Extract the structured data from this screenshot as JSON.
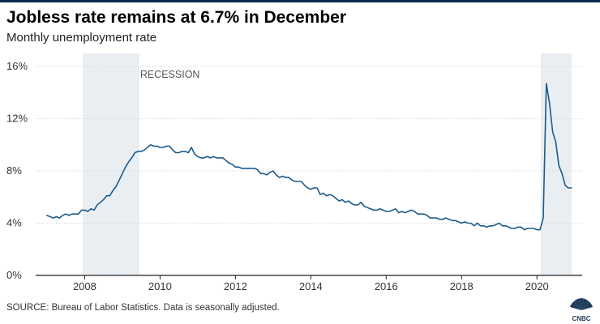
{
  "header": {
    "title": "Jobless rate remains at 6.7% in December",
    "subtitle": "Monthly unemployment rate"
  },
  "footer": {
    "source": "SOURCE: Bureau of Labor Statistics. Data is seasonally adjusted.",
    "logo_text": "CNBC"
  },
  "colors": {
    "line": "#1b5b8c",
    "recession_band": "#e9eef3",
    "grid": "#d9d9d9",
    "axis": "#222222",
    "text": "#333333"
  },
  "chart_data": {
    "type": "line",
    "title": "Jobless rate remains at 6.7% in December",
    "subtitle": "Monthly unemployment rate",
    "xlabel": "",
    "ylabel": "",
    "xlim": [
      2006.7,
      2021.2
    ],
    "ylim": [
      0,
      17
    ],
    "y_ticks": [
      0,
      4,
      8,
      12,
      16
    ],
    "y_tick_labels": [
      "0%",
      "4%",
      "8%",
      "12%",
      "16%"
    ],
    "x_ticks": [
      2008,
      2010,
      2012,
      2014,
      2016,
      2018,
      2020
    ],
    "x_tick_labels": [
      "2008",
      "2010",
      "2012",
      "2014",
      "2016",
      "2018",
      "2020"
    ],
    "grid": true,
    "recessions": [
      {
        "start": 2007.95,
        "end": 2009.45,
        "label": "RECESSION"
      },
      {
        "start": 2020.1,
        "end": 2020.92,
        "label": ""
      }
    ],
    "series": [
      {
        "name": "",
        "x": [
          2007.0,
          2007.083,
          2007.167,
          2007.25,
          2007.333,
          2007.417,
          2007.5,
          2007.583,
          2007.667,
          2007.75,
          2007.833,
          2007.917,
          2008.0,
          2008.083,
          2008.167,
          2008.25,
          2008.333,
          2008.417,
          2008.5,
          2008.583,
          2008.667,
          2008.75,
          2008.833,
          2008.917,
          2009.0,
          2009.083,
          2009.167,
          2009.25,
          2009.333,
          2009.417,
          2009.5,
          2009.583,
          2009.667,
          2009.75,
          2009.833,
          2009.917,
          2010.0,
          2010.083,
          2010.167,
          2010.25,
          2010.333,
          2010.417,
          2010.5,
          2010.583,
          2010.667,
          2010.75,
          2010.833,
          2010.917,
          2011.0,
          2011.083,
          2011.167,
          2011.25,
          2011.333,
          2011.417,
          2011.5,
          2011.583,
          2011.667,
          2011.75,
          2011.833,
          2011.917,
          2012.0,
          2012.083,
          2012.167,
          2012.25,
          2012.333,
          2012.417,
          2012.5,
          2012.583,
          2012.667,
          2012.75,
          2012.833,
          2012.917,
          2013.0,
          2013.083,
          2013.167,
          2013.25,
          2013.333,
          2013.417,
          2013.5,
          2013.583,
          2013.667,
          2013.75,
          2013.833,
          2013.917,
          2014.0,
          2014.083,
          2014.167,
          2014.25,
          2014.333,
          2014.417,
          2014.5,
          2014.583,
          2014.667,
          2014.75,
          2014.833,
          2014.917,
          2015.0,
          2015.083,
          2015.167,
          2015.25,
          2015.333,
          2015.417,
          2015.5,
          2015.583,
          2015.667,
          2015.75,
          2015.833,
          2015.917,
          2016.0,
          2016.083,
          2016.167,
          2016.25,
          2016.333,
          2016.417,
          2016.5,
          2016.583,
          2016.667,
          2016.75,
          2016.833,
          2016.917,
          2017.0,
          2017.083,
          2017.167,
          2017.25,
          2017.333,
          2017.417,
          2017.5,
          2017.583,
          2017.667,
          2017.75,
          2017.833,
          2017.917,
          2018.0,
          2018.083,
          2018.167,
          2018.25,
          2018.333,
          2018.417,
          2018.5,
          2018.583,
          2018.667,
          2018.75,
          2018.833,
          2018.917,
          2019.0,
          2019.083,
          2019.167,
          2019.25,
          2019.333,
          2019.417,
          2019.5,
          2019.583,
          2019.667,
          2019.75,
          2019.833,
          2019.917,
          2020.0,
          2020.083,
          2020.167,
          2020.25,
          2020.333,
          2020.417,
          2020.5,
          2020.583,
          2020.667,
          2020.75,
          2020.833,
          2020.917
        ],
        "y": [
          4.6,
          4.5,
          4.4,
          4.5,
          4.4,
          4.6,
          4.7,
          4.6,
          4.7,
          4.7,
          4.7,
          5.0,
          5.0,
          4.9,
          5.1,
          5.0,
          5.4,
          5.6,
          5.8,
          6.1,
          6.1,
          6.5,
          6.8,
          7.3,
          7.8,
          8.3,
          8.7,
          9.0,
          9.4,
          9.5,
          9.5,
          9.6,
          9.8,
          10.0,
          9.9,
          9.9,
          9.8,
          9.8,
          9.9,
          9.9,
          9.6,
          9.4,
          9.4,
          9.5,
          9.5,
          9.4,
          9.8,
          9.3,
          9.1,
          9.0,
          9.0,
          9.1,
          9.0,
          9.1,
          9.0,
          9.0,
          9.0,
          8.8,
          8.6,
          8.5,
          8.3,
          8.3,
          8.2,
          8.2,
          8.2,
          8.2,
          8.2,
          8.1,
          7.8,
          7.8,
          7.7,
          7.9,
          8.0,
          7.7,
          7.5,
          7.6,
          7.5,
          7.5,
          7.3,
          7.2,
          7.2,
          7.2,
          6.9,
          6.7,
          6.6,
          6.7,
          6.7,
          6.2,
          6.3,
          6.1,
          6.2,
          6.1,
          5.9,
          5.7,
          5.8,
          5.6,
          5.7,
          5.5,
          5.4,
          5.4,
          5.6,
          5.3,
          5.2,
          5.1,
          5.0,
          5.0,
          5.1,
          5.0,
          4.9,
          4.9,
          5.0,
          5.1,
          4.8,
          4.9,
          4.8,
          4.9,
          5.0,
          4.9,
          4.7,
          4.7,
          4.7,
          4.6,
          4.4,
          4.4,
          4.4,
          4.3,
          4.3,
          4.4,
          4.3,
          4.2,
          4.2,
          4.1,
          4.0,
          4.1,
          4.0,
          4.0,
          3.8,
          4.0,
          3.8,
          3.8,
          3.7,
          3.8,
          3.8,
          3.9,
          4.0,
          3.8,
          3.8,
          3.7,
          3.6,
          3.6,
          3.7,
          3.7,
          3.5,
          3.6,
          3.6,
          3.6,
          3.5,
          3.5,
          4.4,
          14.7,
          13.2,
          11.0,
          10.2,
          8.4,
          7.8,
          6.9,
          6.7,
          6.7
        ]
      }
    ]
  }
}
